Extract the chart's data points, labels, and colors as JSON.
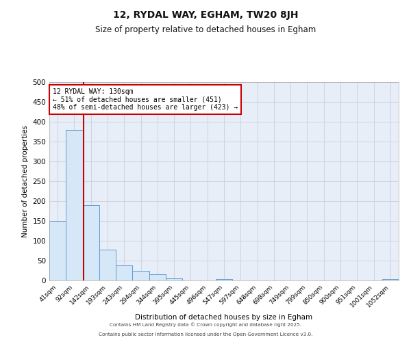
{
  "title": "12, RYDAL WAY, EGHAM, TW20 8JH",
  "subtitle": "Size of property relative to detached houses in Egham",
  "xlabel": "Distribution of detached houses by size in Egham",
  "ylabel": "Number of detached properties",
  "bar_labels": [
    "41sqm",
    "92sqm",
    "142sqm",
    "193sqm",
    "243sqm",
    "294sqm",
    "344sqm",
    "395sqm",
    "445sqm",
    "496sqm",
    "547sqm",
    "597sqm",
    "648sqm",
    "698sqm",
    "749sqm",
    "799sqm",
    "850sqm",
    "900sqm",
    "951sqm",
    "1001sqm",
    "1052sqm"
  ],
  "bar_heights": [
    150,
    380,
    190,
    77,
    38,
    25,
    15,
    6,
    0,
    0,
    4,
    0,
    0,
    0,
    0,
    0,
    0,
    0,
    0,
    0,
    4
  ],
  "bar_color": "#d6e8f7",
  "bar_edge_color": "#5b9bd5",
  "ylim": [
    0,
    500
  ],
  "yticks": [
    0,
    50,
    100,
    150,
    200,
    250,
    300,
    350,
    400,
    450,
    500
  ],
  "red_line_x": 1.55,
  "annotation_line1": "12 RYDAL WAY: 130sqm",
  "annotation_line2": "← 51% of detached houses are smaller (451)",
  "annotation_line3": "48% of semi-detached houses are larger (423) →",
  "annotation_box_color": "#ffffff",
  "annotation_box_edge": "#cc0000",
  "red_line_color": "#cc0000",
  "grid_color": "#c8d0dc",
  "background_color": "#e8eef8",
  "footer_line1": "Contains HM Land Registry data © Crown copyright and database right 2025.",
  "footer_line2": "Contains public sector information licensed under the Open Government Licence v3.0."
}
